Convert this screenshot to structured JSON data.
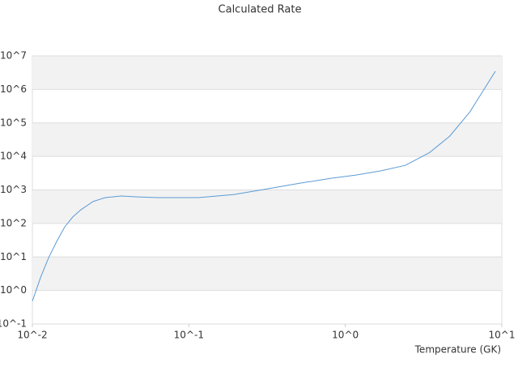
{
  "chart_data": {
    "type": "line",
    "title": "Calculated Rate",
    "x_label": "Temperature (GK)",
    "x_log": true,
    "y_log": true,
    "grid": true,
    "bands": true,
    "xlim": [
      0.01,
      10
    ],
    "ylim": [
      0.1,
      10000000
    ],
    "xticks": [
      {
        "value": 0.01,
        "label": "10^-2"
      },
      {
        "value": 0.1,
        "label": "10^-1"
      },
      {
        "value": 1,
        "label": "10^0"
      },
      {
        "value": 10,
        "label": "10^1"
      }
    ],
    "yticks": [
      {
        "value": 0.1,
        "label": "10^-1"
      },
      {
        "value": 1,
        "label": "10^0"
      },
      {
        "value": 10,
        "label": "10^1"
      },
      {
        "value": 100,
        "label": "10^2"
      },
      {
        "value": 1000,
        "label": "10^3"
      },
      {
        "value": 10000,
        "label": "10^4"
      },
      {
        "value": 100000,
        "label": "10^5"
      },
      {
        "value": 1000000,
        "label": "10^6"
      },
      {
        "value": 10000000,
        "label": "10^7"
      }
    ],
    "x": [
      0.01,
      0.0113,
      0.0127,
      0.0143,
      0.0161,
      0.0181,
      0.0204,
      0.0244,
      0.0292,
      0.037,
      0.047,
      0.063,
      0.115,
      0.195,
      0.316,
      0.51,
      0.82,
      1.17,
      1.68,
      2.41,
      3.45,
      4.64,
      6.25,
      9.1
    ],
    "series": [
      {
        "color": "#5b9bd5",
        "values": [
          0.48,
          2.5,
          9.5,
          29,
          79,
          155,
          255,
          450,
          590,
          660,
          620,
          590,
          590,
          730,
          1070,
          1580,
          2240,
          2780,
          3700,
          5400,
          13000,
          40000,
          213000,
          3500000
        ]
      }
    ]
  }
}
